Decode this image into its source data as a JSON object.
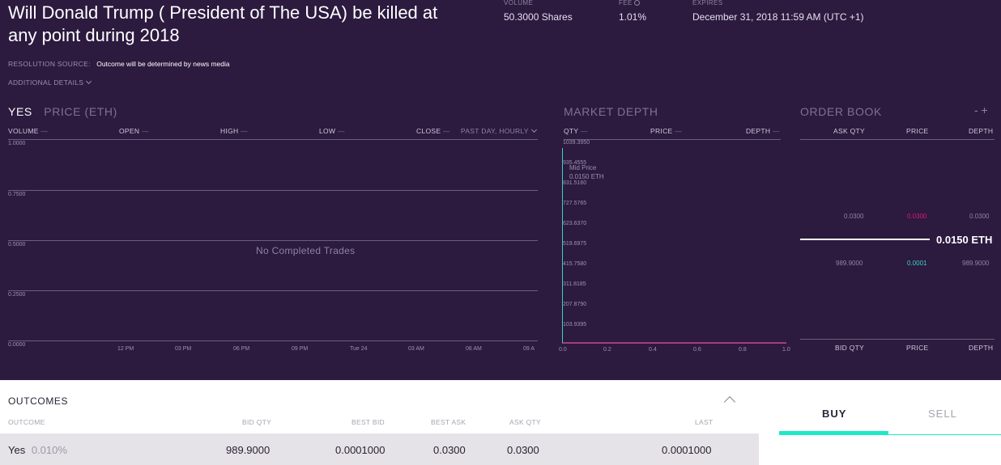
{
  "market": {
    "title": "Will Donald Trump ( President of The USA) be killed at any point during 2018",
    "resolution_label": "RESOLUTION SOURCE:",
    "resolution_value": "Outcome will be determined by news media",
    "additional_details": "ADDITIONAL DETAILS"
  },
  "stats": {
    "volume_label": "VOLUME",
    "volume_value": "50.3000 Shares",
    "fee_label": "FEE",
    "fee_value": "1.01%",
    "expires_label": "EXPIRES",
    "expires_value": "December 31, 2018 11:59 AM (UTC +1)"
  },
  "price_chart": {
    "outcome": "YES",
    "title": "PRICE (ETH)",
    "columns": [
      "VOLUME",
      "OPEN",
      "HIGH",
      "LOW",
      "CLOSE"
    ],
    "dash": "—",
    "range_selector": "PAST DAY, HOURLY",
    "empty_message": "No Completed Trades",
    "y_ticks": [
      "1.0000",
      "0.7500",
      "0.5000",
      "0.2500",
      "0.0000"
    ],
    "x_ticks": [
      "12 PM",
      "03 PM",
      "06 PM",
      "09 PM",
      "Tue 24",
      "03 AM",
      "06 AM",
      "09 A"
    ]
  },
  "market_depth": {
    "title": "MARKET DEPTH",
    "columns": [
      "QTY",
      "PRICE",
      "DEPTH"
    ],
    "y_ticks": [
      "1039.3950",
      "935.4555",
      "831.5160",
      "727.5765",
      "623.6370",
      "519.6975",
      "415.7580",
      "311.8185",
      "207.8790",
      "103.9395"
    ],
    "x_ticks": [
      "0.0",
      "0.2",
      "0.4",
      "0.6",
      "0.8",
      "1.0"
    ],
    "mid_label": "Mid Price",
    "mid_value": "0.0150 ETH"
  },
  "order_book": {
    "title": "ORDER BOOK",
    "controls": "- +",
    "top_columns": [
      "ASK QTY",
      "PRICE",
      "DEPTH"
    ],
    "ask": {
      "qty": "0.0300",
      "price": "0.0300",
      "depth": "0.0300"
    },
    "mid_price": "0.0150 ETH",
    "bid": {
      "qty": "989.9000",
      "price": "0.0001",
      "depth": "989.9000"
    },
    "bottom_columns": [
      "BID QTY",
      "PRICE",
      "DEPTH"
    ]
  },
  "outcomes": {
    "title": "OUTCOMES",
    "columns": [
      "OUTCOME",
      "BID QTY",
      "BEST BID",
      "BEST ASK",
      "ASK QTY",
      "LAST"
    ],
    "rows": [
      {
        "name": "Yes",
        "pct": "0.010%",
        "bid_qty": "989.9000",
        "best_bid": "0.0001000",
        "best_ask": "0.0300",
        "ask_qty": "0.0300",
        "last": "0.0001000"
      }
    ]
  },
  "trade": {
    "buy": "BUY",
    "sell": "SELL"
  },
  "colors": {
    "background": "#2c1a3f",
    "ask": "#e0196e",
    "bid": "#33d6c6",
    "accent": "#1de9c8"
  }
}
